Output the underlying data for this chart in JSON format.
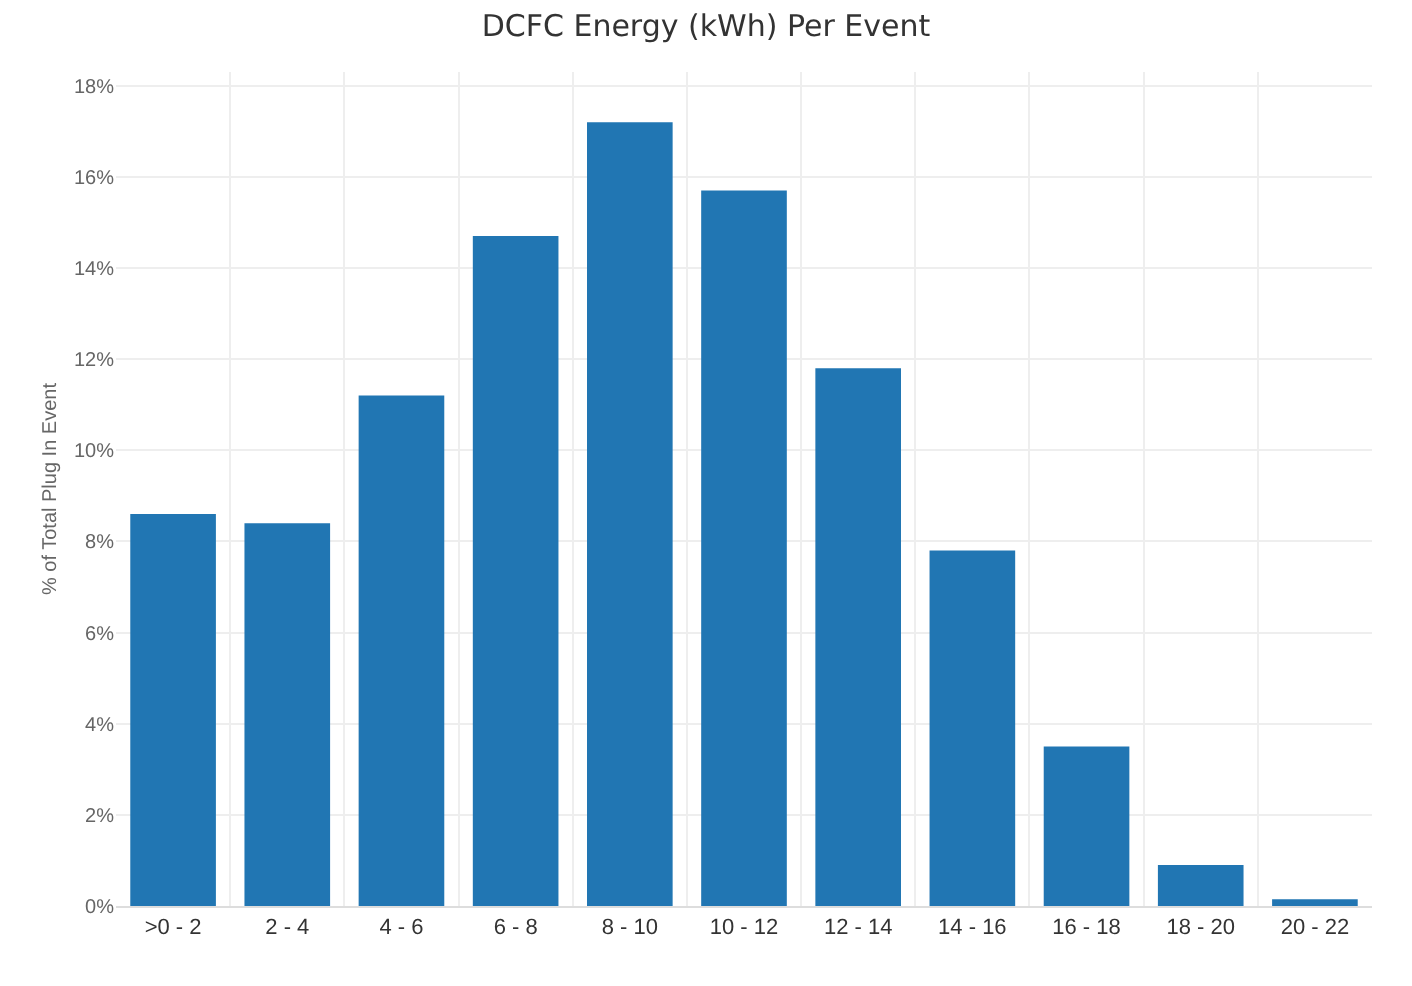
{
  "chart_data": {
    "type": "bar",
    "title": "DCFC Energy (kWh) Per Event",
    "ylabel": "% of Total Plug In Event",
    "categories": [
      ">0 - 2",
      "2 - 4",
      "4 - 6",
      "6 - 8",
      "8 - 10",
      "10 - 12",
      "12 - 14",
      "14 - 16",
      "16 - 18",
      "18 - 20",
      "20 - 22"
    ],
    "series": [
      {
        "color": "#2176b3",
        "values": [
          8.6,
          8.4,
          11.2,
          14.7,
          17.2,
          15.7,
          11.8,
          7.8,
          3.5,
          0.9,
          0.15
        ]
      }
    ],
    "ylim": [
      0,
      18.3
    ],
    "yticks": [
      {
        "value": 0,
        "label": "0%"
      },
      {
        "value": 2,
        "label": "2%"
      },
      {
        "value": 4,
        "label": "4%"
      },
      {
        "value": 6,
        "label": "6%"
      },
      {
        "value": 8,
        "label": "8%"
      },
      {
        "value": 10,
        "label": "10%"
      },
      {
        "value": 12,
        "label": "12%"
      },
      {
        "value": 14,
        "label": "14%"
      },
      {
        "value": 16,
        "label": "16%"
      },
      {
        "value": 18,
        "label": "18%"
      }
    ],
    "grid": true
  }
}
